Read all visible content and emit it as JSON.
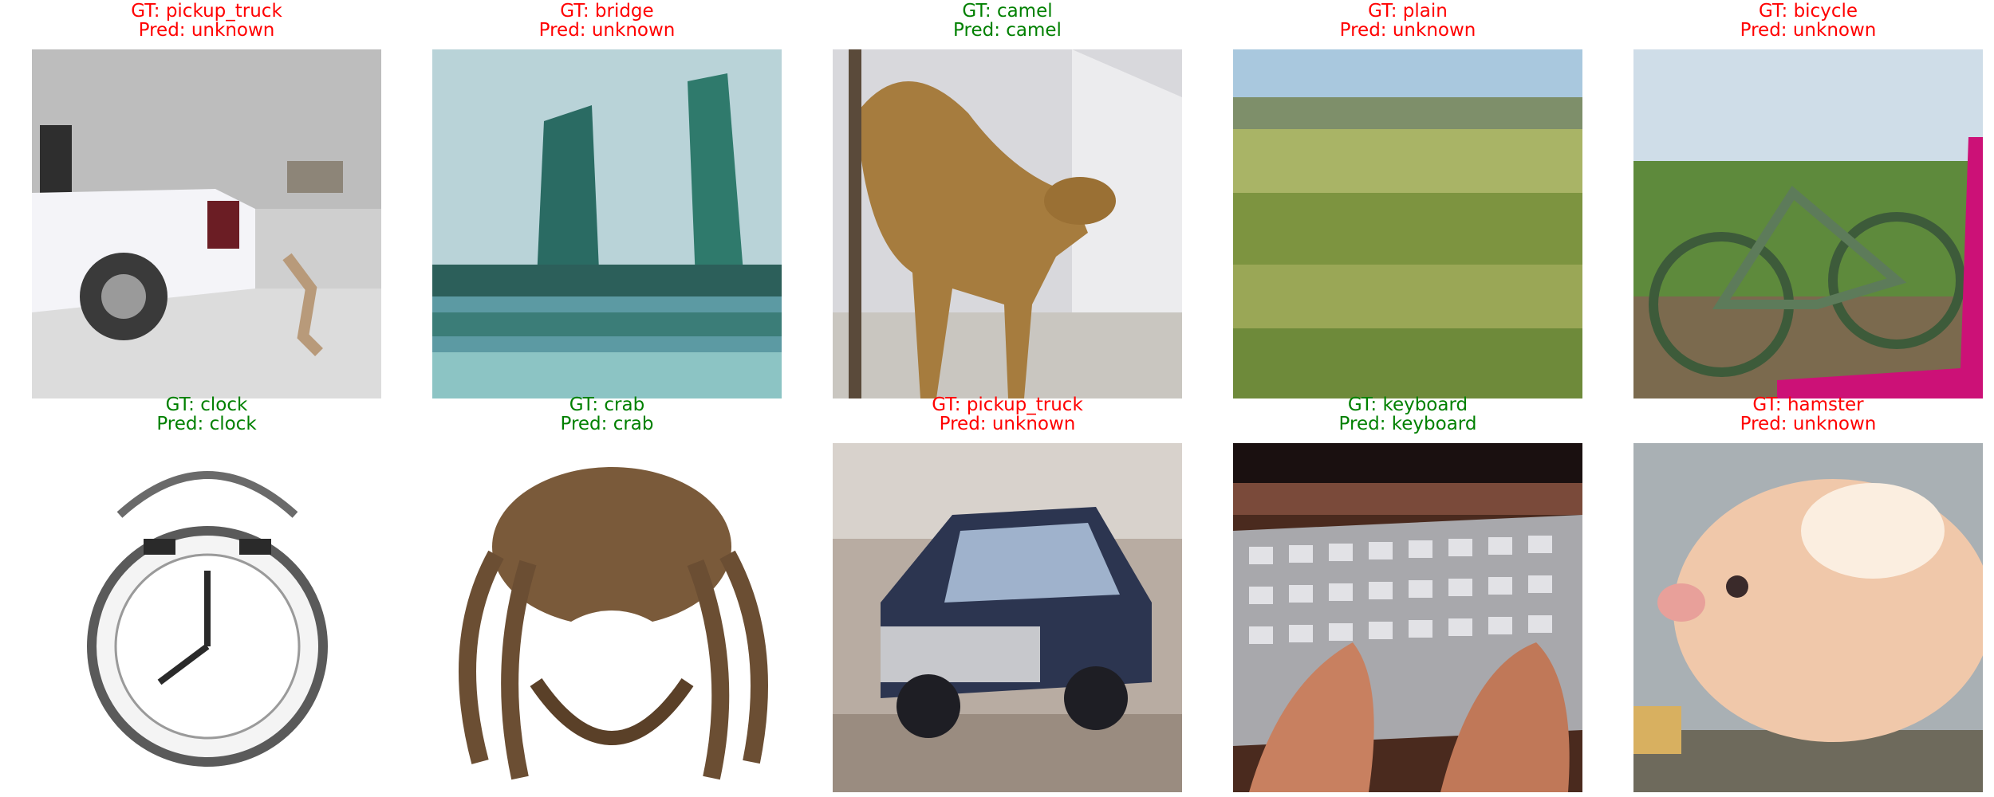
{
  "colors": {
    "correct": "#008000",
    "incorrect": "#ff0000"
  },
  "panels": [
    {
      "gt": "GT: pickup_truck",
      "pred": "Pred: unknown",
      "correct": false,
      "icon": "pickup-truck-photo"
    },
    {
      "gt": "GT: bridge",
      "pred": "Pred: unknown",
      "correct": false,
      "icon": "bridge-photo"
    },
    {
      "gt": "GT: camel",
      "pred": "Pred: camel",
      "correct": true,
      "icon": "camel-photo"
    },
    {
      "gt": "GT: plain",
      "pred": "Pred: unknown",
      "correct": false,
      "icon": "plain-photo"
    },
    {
      "gt": "GT: bicycle",
      "pred": "Pred: unknown",
      "correct": false,
      "icon": "bicycle-photo"
    },
    {
      "gt": "GT: clock",
      "pred": "Pred: clock",
      "correct": true,
      "icon": "clock-photo"
    },
    {
      "gt": "GT: crab",
      "pred": "Pred: crab",
      "correct": true,
      "icon": "crab-photo"
    },
    {
      "gt": "GT: pickup_truck",
      "pred": "Pred: unknown",
      "correct": false,
      "icon": "pickup-truck-photo"
    },
    {
      "gt": "GT: keyboard",
      "pred": "Pred: keyboard",
      "correct": true,
      "icon": "keyboard-photo"
    },
    {
      "gt": "GT: hamster",
      "pred": "Pred: unknown",
      "correct": false,
      "icon": "hamster-photo"
    }
  ]
}
